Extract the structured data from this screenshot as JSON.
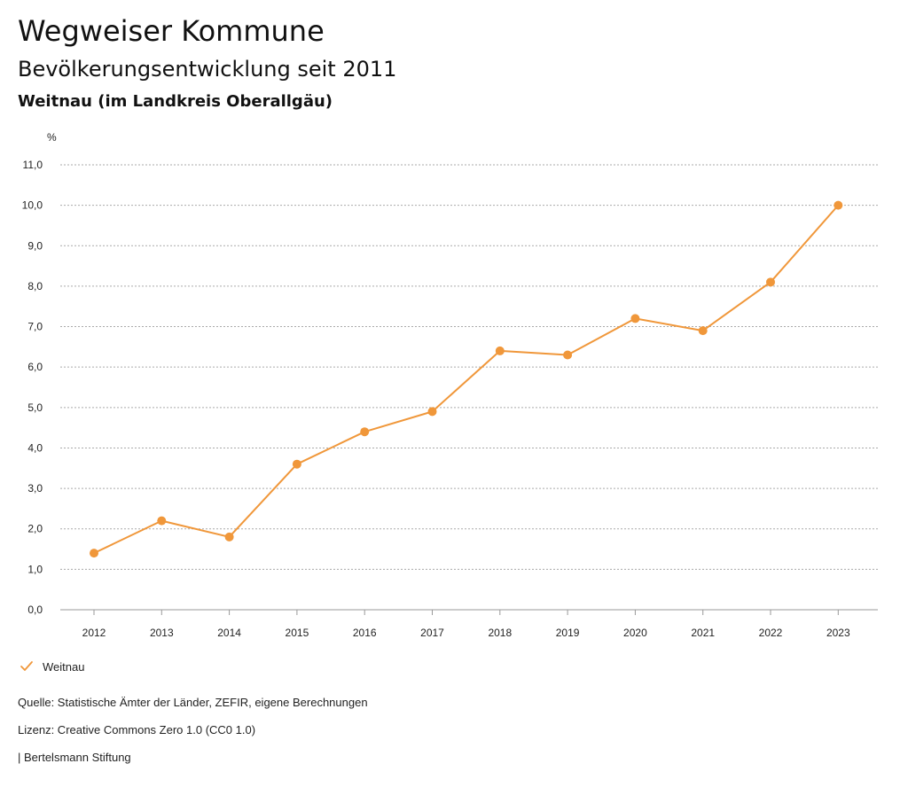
{
  "header": {
    "title": "Wegweiser Kommune",
    "subtitle": "Bevölkerungsentwicklung seit 2011",
    "region": "Weitnau (im Landkreis Oberallgäu)"
  },
  "legend": {
    "icon": "check-icon",
    "label": "Weitnau"
  },
  "footer": {
    "source": "Quelle: Statistische Ämter der Länder, ZEFIR, eigene Berechnungen",
    "license": "Lizenz: Creative Commons Zero 1.0 (CC0 1.0)",
    "publisher": "| Bertelsmann Stiftung"
  },
  "colors": {
    "series": "#f0973a",
    "grid": "#aaaaaa",
    "text": "#222222"
  },
  "chart_data": {
    "type": "line",
    "ylabel": "%",
    "xlabel": "",
    "ylim": [
      0,
      11
    ],
    "yticks": [
      0,
      1,
      2,
      3,
      4,
      5,
      6,
      7,
      8,
      9,
      10,
      11
    ],
    "ytick_labels": [
      "0,0",
      "1,0",
      "2,0",
      "3,0",
      "4,0",
      "5,0",
      "6,0",
      "7,0",
      "8,0",
      "9,0",
      "10,0",
      "11,0"
    ],
    "x": [
      "2012",
      "2013",
      "2014",
      "2015",
      "2016",
      "2017",
      "2018",
      "2019",
      "2020",
      "2021",
      "2022",
      "2023"
    ],
    "grid": "horizontal dotted",
    "legend_position": "bottom-left",
    "series": [
      {
        "name": "Weitnau",
        "values": [
          1.4,
          2.2,
          1.8,
          3.6,
          4.4,
          4.9,
          6.4,
          6.3,
          7.2,
          6.9,
          8.1,
          10.0
        ]
      }
    ]
  }
}
